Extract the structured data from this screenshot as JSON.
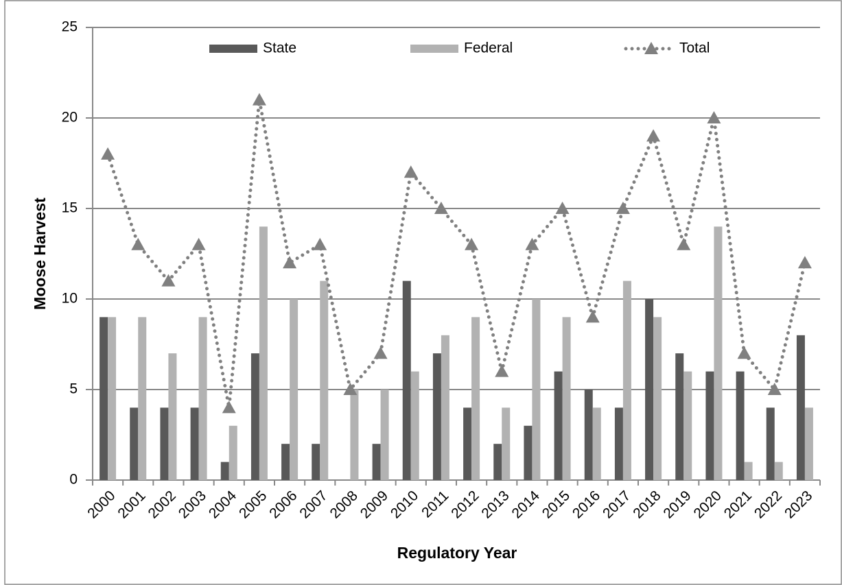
{
  "chart_data": {
    "type": "bar_line",
    "x_label": "Regulatory Year",
    "y_label": "Moose Harvest",
    "categories": [
      "2000",
      "2001",
      "2002",
      "2003",
      "2004",
      "2005",
      "2006",
      "2007",
      "2008",
      "2009",
      "2010",
      "2011",
      "2012",
      "2013",
      "2014",
      "2015",
      "2016",
      "2017",
      "2018",
      "2019",
      "2020",
      "2021",
      "2022",
      "2023"
    ],
    "series": [
      {
        "name": "State",
        "type": "bar",
        "color": "#595959",
        "values": [
          9,
          4,
          4,
          4,
          1,
          7,
          2,
          2,
          0,
          2,
          11,
          7,
          4,
          2,
          3,
          6,
          5,
          4,
          10,
          7,
          6,
          6,
          4,
          8
        ]
      },
      {
        "name": "Federal",
        "type": "bar",
        "color": "#b2b2b2",
        "values": [
          9,
          9,
          7,
          9,
          3,
          14,
          10,
          11,
          5,
          5,
          6,
          8,
          9,
          4,
          10,
          9,
          4,
          11,
          9,
          6,
          14,
          1,
          1,
          4
        ]
      },
      {
        "name": "Total",
        "type": "line",
        "color": "#808080",
        "values": [
          18,
          13,
          11,
          13,
          4,
          21,
          12,
          13,
          5,
          7,
          17,
          15,
          13,
          6,
          13,
          15,
          9,
          15,
          19,
          13,
          20,
          7,
          5,
          12
        ]
      }
    ],
    "ylim": [
      0,
      25
    ],
    "yticks": [
      0,
      5,
      10,
      15,
      20,
      25
    ],
    "grid": true,
    "legend": "top"
  }
}
